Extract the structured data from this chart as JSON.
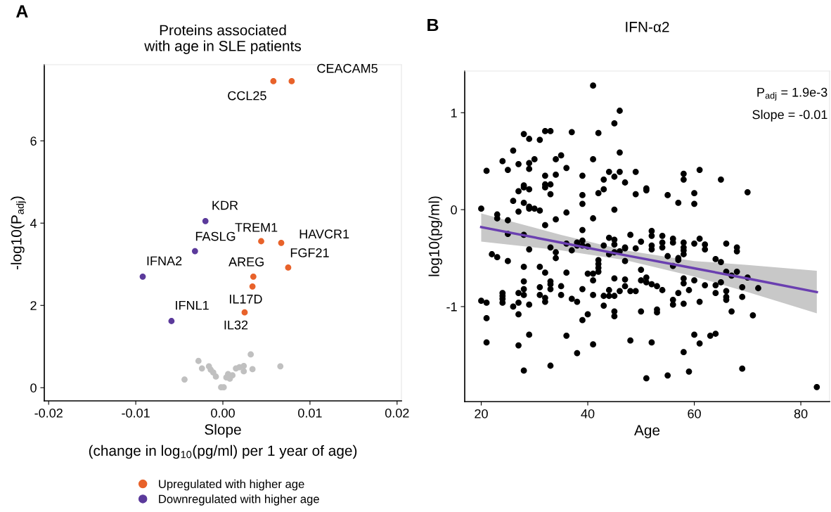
{
  "chart_data": [
    {
      "type": "scatter",
      "title": "Proteins associated\nwith age in SLE patients",
      "xlabel": "Slope\n(change in log$_{10}$(pg/ml) per 1 year of age)",
      "ylabel": "-log10(P$_{adj}$)",
      "annotations": [
        "A",
        {
          "text": "CEACAM5",
          "x": 0.0079,
          "y": 7.45
        },
        {
          "text": "CCL25",
          "x": 0.0058,
          "y": 7.45
        },
        {
          "text": "KDR",
          "x": -0.002,
          "y": 4.05
        },
        {
          "text": "TREM1",
          "x": 0.0044,
          "y": 3.56
        },
        {
          "text": "HAVCR1",
          "x": 0.0067,
          "y": 3.52
        },
        {
          "text": "FASLG",
          "x": -0.0032,
          "y": 3.32
        },
        {
          "text": "FGF21",
          "x": 0.0075,
          "y": 2.92
        },
        {
          "text": "IFNA2",
          "x": -0.0092,
          "y": 2.7
        },
        {
          "text": "AREG",
          "x": 0.0035,
          "y": 2.7
        },
        {
          "text": "IL17D",
          "x": 0.0034,
          "y": 2.46
        },
        {
          "text": "IL32",
          "x": 0.0025,
          "y": 1.83
        },
        {
          "text": "IFNL1",
          "x": -0.0059,
          "y": 1.62
        }
      ],
      "series": [
        {
          "color": "#c0c0c0",
          "x": [
            -0.0044,
            -0.0028,
            -0.0024,
            -0.0016,
            -0.0014,
            -0.0011,
            -0.0008,
            -0.0002,
            0.0001,
            0.0006,
            0.0008,
            0.0011,
            0.0015,
            0.0019,
            0.0024,
            0.0024,
            0.0032,
            0.0034,
            0.0066,
            0.0004
          ],
          "values": [
            0.2,
            0.65,
            0.47,
            0.52,
            0.44,
            0.37,
            0.27,
            0.01,
            0.01,
            0.33,
            0.22,
            0.3,
            0.47,
            0.5,
            0.53,
            0.4,
            0.81,
            0.45,
            0.52,
            0.25
          ]
        },
        {
          "name": "Upregulated with higher age",
          "color": "#e8622a",
          "x": [
            0.0079,
            0.0058,
            0.0044,
            0.0067,
            0.0075,
            0.0035,
            0.0034,
            0.0025
          ],
          "values": [
            7.45,
            7.45,
            3.56,
            3.52,
            2.92,
            2.7,
            2.46,
            1.83
          ]
        },
        {
          "name": "Downregulated with higher age",
          "color": "#5b3a9b",
          "x": [
            -0.002,
            -0.0032,
            -0.0092,
            -0.0059
          ],
          "values": [
            4.05,
            3.32,
            2.7,
            1.62
          ]
        }
      ],
      "xlim": [
        -0.0205,
        0.0205
      ],
      "ylim": [
        -0.32,
        7.85
      ],
      "xticks": [
        -0.02,
        -0.01,
        {
          "value": 0,
          "label": "0.00"
        },
        0.01,
        0.02
      ],
      "yticks": [
        0,
        2,
        4,
        6
      ],
      "marker": "circle",
      "grid": false,
      "legend": "bottom"
    },
    {
      "type": "scatter",
      "title": "IFN-α2",
      "xlabel": "Age",
      "ylabel": "log10(pg/ml)",
      "annotations": [
        "B",
        "P$_{adj}$ = 1.9e-3",
        "Slope = -0.01"
      ],
      "series": [
        {
          "color": "#000000",
          "x": [
            20,
            20,
            21,
            21,
            21,
            21,
            22,
            23,
            23,
            23,
            24,
            24,
            24,
            24,
            24,
            25,
            25,
            25,
            25,
            26,
            26,
            26,
            27,
            27,
            27,
            27,
            27,
            27,
            27,
            28,
            28,
            28,
            28,
            28,
            28,
            28,
            28,
            28,
            28,
            29,
            29,
            29,
            29,
            29,
            29,
            29,
            29,
            29,
            30,
            30,
            31,
            31,
            31,
            31,
            31,
            32,
            32,
            32,
            32,
            32,
            32,
            32,
            32,
            33,
            33,
            33,
            33,
            33,
            33,
            33,
            33,
            34,
            34,
            34,
            34,
            34,
            35,
            35,
            35,
            36,
            36,
            36,
            36,
            36,
            37,
            37,
            37,
            38,
            38,
            38,
            38,
            39,
            39,
            39,
            39,
            39,
            39,
            39,
            39,
            40,
            40,
            40,
            41,
            41,
            41,
            41,
            41,
            41,
            41,
            42,
            42,
            42,
            42,
            42,
            42,
            43,
            43,
            43,
            43,
            43,
            44,
            44,
            44,
            44,
            44,
            45,
            45,
            45,
            45,
            45,
            45,
            45,
            45,
            45,
            45,
            46,
            46,
            46,
            46,
            46,
            47,
            47,
            47,
            47,
            47,
            47,
            48,
            48,
            48,
            49,
            49,
            49,
            49,
            50,
            50,
            50,
            50,
            51,
            51,
            51,
            51,
            51,
            52,
            52,
            52,
            52,
            52,
            52,
            53,
            53,
            53,
            54,
            54,
            54,
            54,
            55,
            55,
            55,
            56,
            56,
            56,
            56,
            56,
            57,
            57,
            57,
            57,
            58,
            58,
            58,
            58,
            58,
            58,
            58,
            58,
            58,
            58,
            59,
            59,
            60,
            60,
            60,
            60,
            60,
            61,
            61,
            61,
            61,
            62,
            62,
            62,
            63,
            64,
            64,
            64,
            64,
            65,
            65,
            65,
            66,
            66,
            66,
            66,
            66,
            67,
            67,
            68,
            68,
            68,
            69,
            69,
            69,
            70,
            70,
            71,
            72,
            83
          ],
          "values": [
            0.01,
            -0.94,
            0.4,
            -0.96,
            -1.12,
            -1.37,
            -0.46,
            -0.05,
            -0.09,
            -0.49,
            0.5,
            -0.86,
            -0.89,
            -0.92,
            -0.96,
            0.41,
            -0.11,
            -0.25,
            -0.53,
            0.61,
            0.09,
            -1.0,
            0.47,
            0.19,
            -0.02,
            -0.86,
            -0.96,
            -1.08,
            -1.4,
            0.78,
            0.25,
            0.23,
            0.07,
            -0.26,
            -0.59,
            -0.74,
            -0.82,
            -0.88,
            -1.66,
            0.73,
            0.48,
            0.42,
            0.21,
            0.03,
            0.01,
            -0.41,
            -0.98,
            -1.29,
            0.52,
            0.01,
            0.72,
            -0.01,
            -0.59,
            -0.8,
            -0.88,
            0.81,
            0.35,
            0.26,
            0.23,
            -0.16,
            -0.65,
            -0.91,
            -0.95,
            0.81,
            0.26,
            0.16,
            -0.39,
            -0.74,
            -0.77,
            -0.82,
            -1.61,
            0.52,
            0.36,
            -0.1,
            -0.44,
            -0.5,
            0.56,
            -0.79,
            -0.88,
            0.43,
            -0.03,
            -0.35,
            -0.65,
            -1.3,
            0.8,
            -0.42,
            -0.92,
            -0.34,
            -0.37,
            -0.95,
            -1.48,
            0.35,
            0.15,
            0.06,
            -0.21,
            -0.32,
            -0.37,
            -0.82,
            -1.14,
            -0.38,
            -0.66,
            -1.08,
            1.28,
            0.52,
            -0.09,
            -0.66,
            -0.73,
            -0.88,
            -1.39,
            0.79,
            0.17,
            -0.52,
            -0.56,
            -0.6,
            -0.64,
            0.31,
            0.21,
            -0.37,
            -0.89,
            -0.99,
            0.39,
            -0.29,
            -0.46,
            -0.83,
            -0.89,
            0.89,
            0.34,
            0.0,
            -0.31,
            -0.36,
            -0.44,
            -0.71,
            -0.89,
            -1.05,
            -1.1,
            1.02,
            0.59,
            0.39,
            -0.43,
            -0.84,
            0.28,
            -0.39,
            -0.4,
            -0.53,
            -0.72,
            -0.79,
            -0.26,
            -0.84,
            -1.35,
            0.39,
            0.16,
            -0.4,
            -0.84,
            -0.33,
            -0.62,
            -0.73,
            -1.05,
            0.22,
            0.2,
            -0.7,
            -0.75,
            -1.74,
            -0.22,
            -0.27,
            -0.37,
            -0.41,
            -0.77,
            -1.37,
            -0.79,
            -1.03,
            -1.06,
            -0.27,
            -0.34,
            -0.39,
            -0.83,
            0.15,
            -0.48,
            -1.71,
            -0.3,
            -0.34,
            -0.58,
            -0.93,
            -0.98,
            0.07,
            -0.5,
            -0.52,
            -0.86,
            0.37,
            0.31,
            -0.34,
            -0.39,
            -0.42,
            -0.46,
            -0.71,
            -0.76,
            -0.97,
            -1.47,
            -0.83,
            -1.67,
            0.17,
            0.06,
            -0.35,
            -0.73,
            -1.29,
            0.41,
            -0.3,
            -0.95,
            -1.38,
            -0.36,
            -0.41,
            -0.78,
            -1.3,
            -0.51,
            -0.78,
            -0.86,
            -1.28,
            0.31,
            -0.54,
            -0.75,
            -0.35,
            -0.64,
            -0.84,
            -0.9,
            -0.93,
            -0.68,
            -1.05,
            -0.39,
            -0.43,
            -0.64,
            -0.8,
            -0.9,
            -1.64,
            0.18,
            -0.7,
            -1.09,
            -0.81,
            -1.83
          ]
        },
        {
          "type": "line",
          "marker": "none",
          "color": "#6a3fb0",
          "x": [
            20,
            35,
            47,
            60,
            70,
            83
          ],
          "values": [
            -0.18,
            -0.34,
            -0.47,
            -0.605,
            -0.71,
            -0.85
          ],
          "lower": [
            -0.33,
            -0.42,
            -0.52,
            -0.69,
            -0.85,
            -1.07
          ],
          "upper": [
            -0.04,
            -0.26,
            -0.42,
            -0.53,
            -0.57,
            -0.63
          ]
        }
      ],
      "xlim": [
        16.9,
        85.4
      ],
      "ylim": [
        -1.98,
        1.43
      ],
      "xticks": [
        20,
        40,
        60,
        80
      ],
      "yticks": [
        -1,
        0,
        1
      ],
      "marker": "circle",
      "grid": false
    }
  ]
}
